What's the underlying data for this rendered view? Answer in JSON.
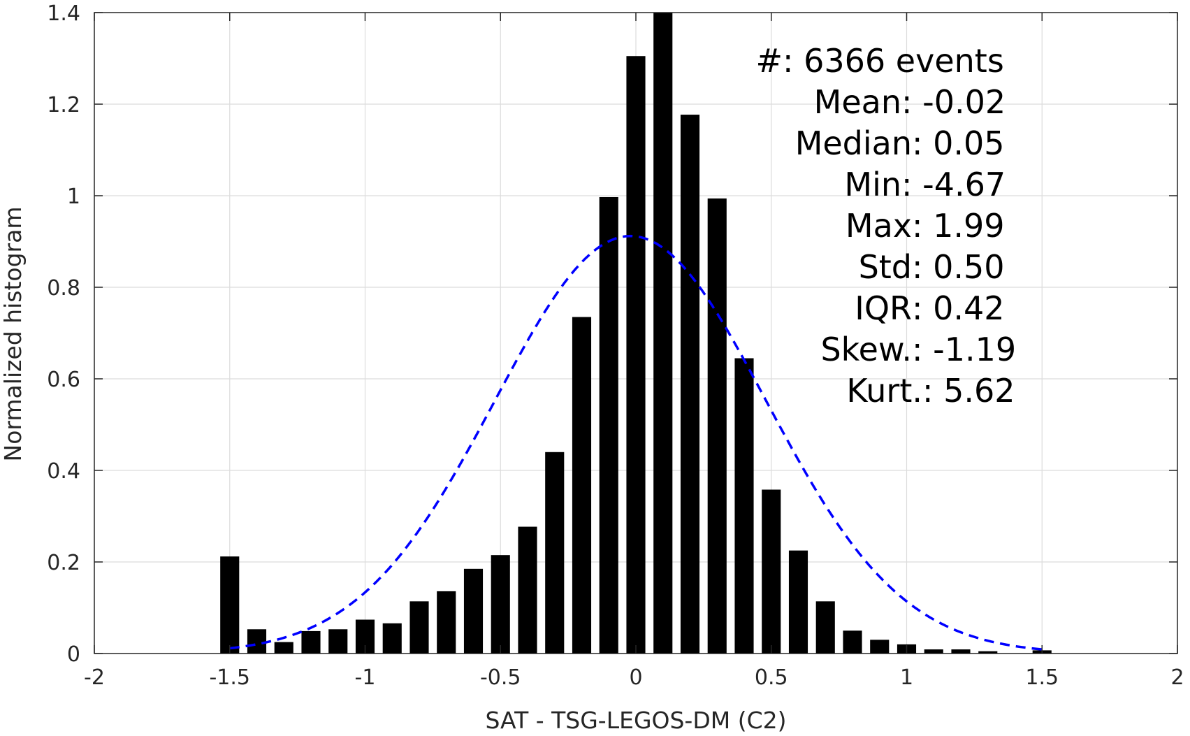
{
  "chart_data": {
    "type": "bar",
    "xlabel": "SAT - TSG-LEGOS-DM (C2)",
    "ylabel": "Normalized histogram",
    "xlim": [
      -2,
      2
    ],
    "ylim": [
      0,
      1.4
    ],
    "x_ticks": [
      -2,
      -1.5,
      -1,
      -0.5,
      0,
      0.5,
      1,
      1.5,
      2
    ],
    "x_tick_labels": [
      "-2",
      "-1.5",
      "-1",
      "-0.5",
      "0",
      "0.5",
      "1",
      "1.5",
      "2"
    ],
    "y_ticks": [
      0,
      0.2,
      0.4,
      0.6,
      0.8,
      1,
      1.2,
      1.4
    ],
    "y_tick_labels": [
      "0",
      "0.2",
      "0.4",
      "0.6",
      "0.8",
      "1",
      "1.2",
      "1.4"
    ],
    "grid": true,
    "bar_color": "#000000",
    "fit_color": "#0000ff",
    "bars": {
      "x": [
        -1.5,
        -1.4,
        -1.3,
        -1.2,
        -1.1,
        -1.0,
        -0.9,
        -0.8,
        -0.7,
        -0.6,
        -0.5,
        -0.4,
        -0.3,
        -0.2,
        -0.1,
        0.0,
        0.1,
        0.2,
        0.3,
        0.4,
        0.5,
        0.6,
        0.7,
        0.8,
        0.9,
        1.0,
        1.1,
        1.2,
        1.3,
        1.5
      ],
      "values": [
        0.212,
        0.053,
        0.025,
        0.049,
        0.053,
        0.074,
        0.066,
        0.114,
        0.136,
        0.185,
        0.215,
        0.277,
        0.44,
        0.735,
        0.997,
        1.305,
        1.41,
        1.177,
        0.994,
        0.645,
        0.358,
        0.225,
        0.114,
        0.05,
        0.03,
        0.02,
        0.009,
        0.009,
        0.005,
        0.007
      ]
    },
    "fit_curve": {
      "style": "dashed",
      "type": "gaussian",
      "mean": -0.02,
      "std": 0.5,
      "peak": 0.912,
      "x_range": [
        -1.5,
        1.5
      ]
    }
  },
  "stats": [
    {
      "label": "#  ",
      "value": ": 6366 events"
    },
    {
      "label": "Mean ",
      "value": ": -0.02"
    },
    {
      "label": "Median ",
      "value": ": 0.05"
    },
    {
      "label": "Min ",
      "value": ": -4.67"
    },
    {
      "label": "Max ",
      "value": ": 1.99"
    },
    {
      "label": "Std ",
      "value": ": 0.50"
    },
    {
      "label": "IQR ",
      "value": ": 0.42"
    },
    {
      "label": "Skew. ",
      "value": ": -1.19"
    },
    {
      "label": "Kurt. ",
      "value": ": 5.62"
    }
  ]
}
